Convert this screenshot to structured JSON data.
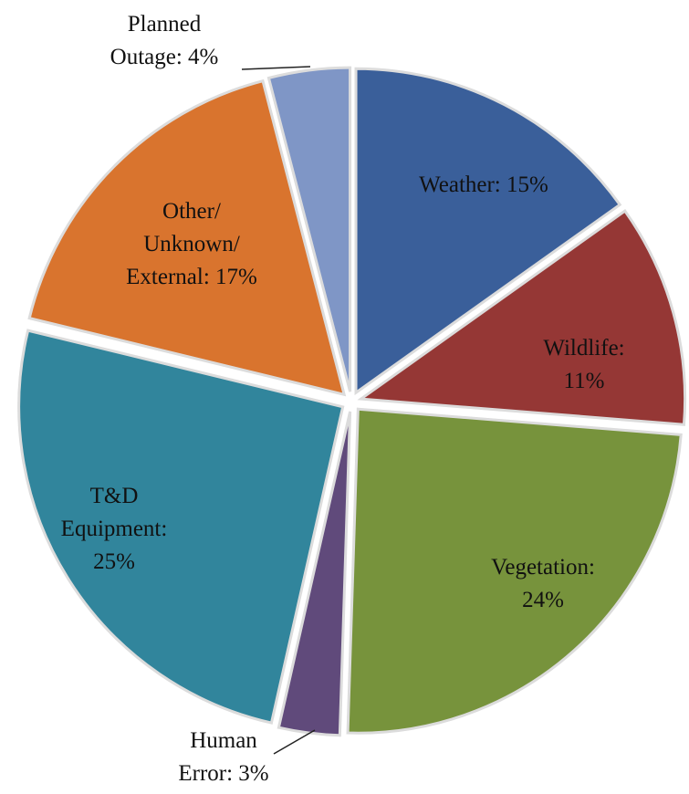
{
  "chart_data": {
    "type": "pie",
    "value_labels": [
      "Weather: 15%",
      "Wildlife: 11%",
      "Vegetation:\n24%",
      "Human\nError: 3%",
      "T&D\nEquipment:\n25%",
      "Other/\nUnknown/\nExternal: 17%",
      "Planned\nOutage: 4%"
    ],
    "values": [
      15,
      11,
      24,
      3,
      25,
      17,
      4
    ],
    "colors": [
      "#3a5f9a",
      "#953735",
      "#77933c",
      "#604a7b",
      "#31859c",
      "#d9742e",
      "#7f96c6"
    ]
  }
}
